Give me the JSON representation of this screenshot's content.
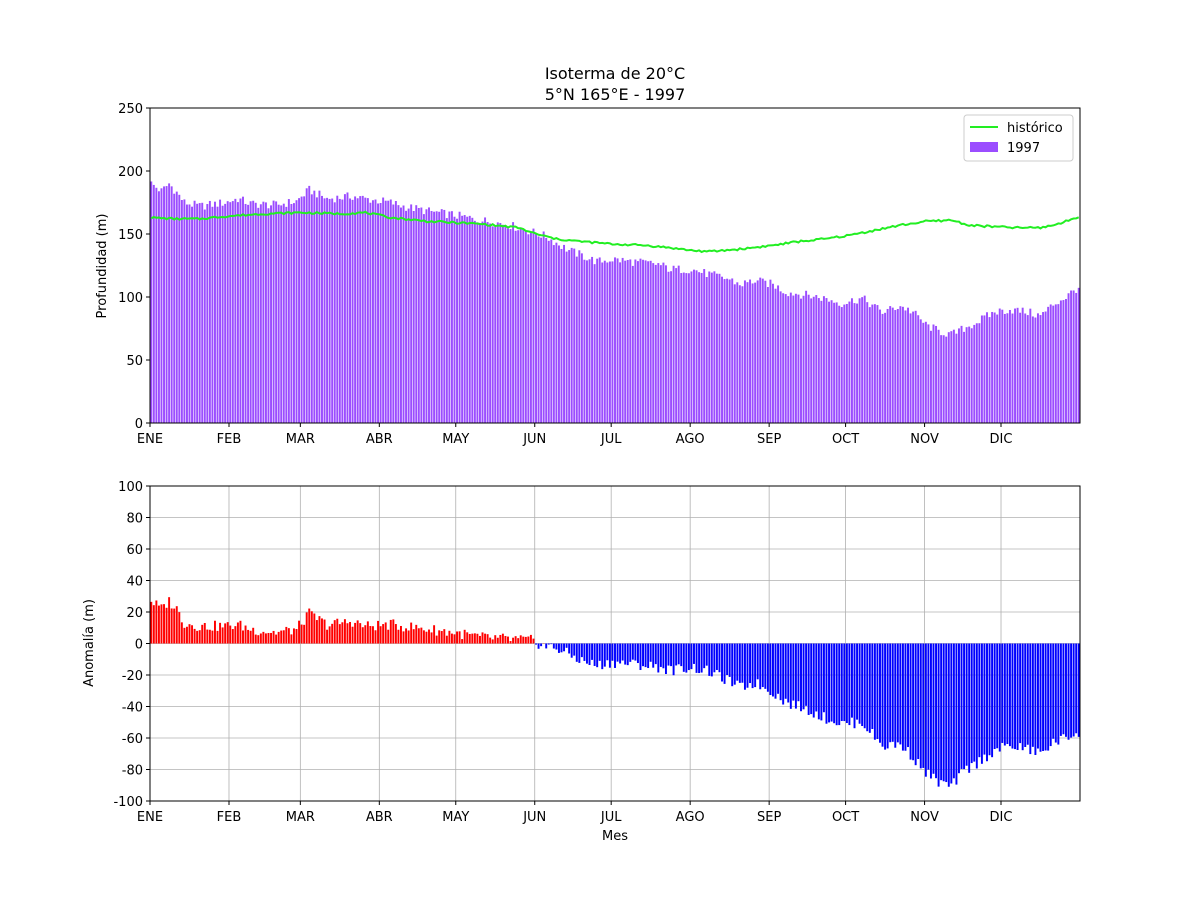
{
  "figure": {
    "title_line1": "Isoterma de 20°C",
    "title_line2": "5°N 165°E - 1997"
  },
  "chart_data": [
    {
      "type": "bar",
      "panel": "top",
      "ylabel": "Profundidad (m)",
      "xlabel": "",
      "ylim": [
        0,
        250
      ],
      "yticks": [
        0,
        50,
        100,
        150,
        200,
        250
      ],
      "xlim": [
        1,
        365
      ],
      "xtick_labels": [
        "ENE",
        "FEB",
        "MAR",
        "ABR",
        "MAY",
        "JUN",
        "JUL",
        "AGO",
        "SEP",
        "OCT",
        "NOV",
        "DIC"
      ],
      "xtick_days": [
        1,
        32,
        60,
        91,
        121,
        152,
        182,
        213,
        244,
        274,
        305,
        335
      ],
      "grid": false,
      "legend": {
        "placement": "top-right",
        "entries": [
          "histórico",
          "1997"
        ]
      },
      "colors": {
        "bars": "#9b4dff",
        "line": "#22ee22"
      },
      "series": [
        {
          "name": "1997",
          "kind": "bar",
          "anchors": [
            [
              1,
              190
            ],
            [
              5,
              184
            ],
            [
              8,
              190
            ],
            [
              11,
              183
            ],
            [
              14,
              175
            ],
            [
              20,
              172
            ],
            [
              30,
              175
            ],
            [
              35,
              178
            ],
            [
              40,
              174
            ],
            [
              50,
              173
            ],
            [
              58,
              176
            ],
            [
              63,
              185
            ],
            [
              70,
              178
            ],
            [
              80,
              180
            ],
            [
              85,
              178
            ],
            [
              95,
              175
            ],
            [
              100,
              172
            ],
            [
              110,
              168
            ],
            [
              120,
              165
            ],
            [
              130,
              161
            ],
            [
              140,
              158
            ],
            [
              150,
              152
            ],
            [
              156,
              148
            ],
            [
              160,
              143
            ],
            [
              165,
              137
            ],
            [
              170,
              133
            ],
            [
              176,
              128
            ],
            [
              182,
              130
            ],
            [
              190,
              128
            ],
            [
              200,
              126
            ],
            [
              205,
              122
            ],
            [
              213,
              122
            ],
            [
              220,
              118
            ],
            [
              228,
              114
            ],
            [
              232,
              110
            ],
            [
              238,
              113
            ],
            [
              245,
              110
            ],
            [
              250,
              104
            ],
            [
              260,
              101
            ],
            [
              265,
              99
            ],
            [
              272,
              95
            ],
            [
              280,
              99
            ],
            [
              288,
              88
            ],
            [
              295,
              93
            ],
            [
              300,
              88
            ],
            [
              305,
              78
            ],
            [
              310,
              73
            ],
            [
              315,
              70
            ],
            [
              320,
              75
            ],
            [
              325,
              80
            ],
            [
              332,
              88
            ],
            [
              338,
              90
            ],
            [
              345,
              88
            ],
            [
              350,
              85
            ],
            [
              355,
              94
            ],
            [
              360,
              100
            ],
            [
              365,
              108
            ]
          ]
        },
        {
          "name": "histórico",
          "kind": "line",
          "anchors": [
            [
              1,
              163
            ],
            [
              10,
              162
            ],
            [
              20,
              162
            ],
            [
              30,
              164
            ],
            [
              45,
              166
            ],
            [
              60,
              167
            ],
            [
              75,
              166
            ],
            [
              85,
              167
            ],
            [
              95,
              163
            ],
            [
              110,
              160
            ],
            [
              130,
              158
            ],
            [
              145,
              155
            ],
            [
              152,
              150
            ],
            [
              160,
              146
            ],
            [
              170,
              144
            ],
            [
              182,
              142
            ],
            [
              195,
              141
            ],
            [
              205,
              139
            ],
            [
              213,
              137
            ],
            [
              220,
              136
            ],
            [
              232,
              138
            ],
            [
              245,
              141
            ],
            [
              255,
              144
            ],
            [
              265,
              146
            ],
            [
              275,
              149
            ],
            [
              285,
              153
            ],
            [
              295,
              157
            ],
            [
              305,
              160
            ],
            [
              315,
              161
            ],
            [
              322,
              157
            ],
            [
              330,
              156
            ],
            [
              340,
              155
            ],
            [
              350,
              155
            ],
            [
              355,
              157
            ],
            [
              360,
              160
            ],
            [
              365,
              164
            ]
          ]
        }
      ]
    },
    {
      "type": "bar",
      "panel": "bottom",
      "ylabel": "Anomalía (m)",
      "xlabel": "Mes",
      "ylim": [
        -100,
        100
      ],
      "yticks": [
        -100,
        -80,
        -60,
        -40,
        -20,
        0,
        20,
        40,
        60,
        80,
        100
      ],
      "xlim": [
        1,
        365
      ],
      "xtick_labels": [
        "ENE",
        "FEB",
        "MAR",
        "ABR",
        "MAY",
        "JUN",
        "JUL",
        "AGO",
        "SEP",
        "OCT",
        "NOV",
        "DIC"
      ],
      "xtick_days": [
        1,
        32,
        60,
        91,
        121,
        152,
        182,
        213,
        244,
        274,
        305,
        335
      ],
      "grid": true,
      "colors": {
        "positive": "#ff0000",
        "negative": "#0000ff",
        "grid": "#b0b0b0"
      },
      "series": [
        {
          "name": "",
          "kind": "bar",
          "anchors": [
            [
              1,
              27
            ],
            [
              5,
              22
            ],
            [
              8,
              27
            ],
            [
              11,
              22
            ],
            [
              14,
              13
            ],
            [
              20,
              11
            ],
            [
              30,
              11
            ],
            [
              35,
              12
            ],
            [
              40,
              9
            ],
            [
              50,
              7
            ],
            [
              58,
              9
            ],
            [
              63,
              19
            ],
            [
              70,
              12
            ],
            [
              80,
              14
            ],
            [
              85,
              11
            ],
            [
              95,
              12
            ],
            [
              100,
              11
            ],
            [
              110,
              9
            ],
            [
              120,
              7
            ],
            [
              130,
              4
            ],
            [
              140,
              3
            ],
            [
              150,
              2
            ],
            [
              156,
              -2
            ],
            [
              160,
              -3
            ],
            [
              165,
              -7
            ],
            [
              170,
              -11
            ],
            [
              176,
              -14
            ],
            [
              182,
              -12
            ],
            [
              190,
              -13
            ],
            [
              200,
              -15
            ],
            [
              205,
              -17
            ],
            [
              213,
              -15
            ],
            [
              220,
              -18
            ],
            [
              228,
              -24
            ],
            [
              232,
              -28
            ],
            [
              238,
              -25
            ],
            [
              245,
              -31
            ],
            [
              250,
              -37
            ],
            [
              260,
              -43
            ],
            [
              265,
              -47
            ],
            [
              272,
              -51
            ],
            [
              280,
              -50
            ],
            [
              288,
              -65
            ],
            [
              295,
              -64
            ],
            [
              300,
              -72
            ],
            [
              305,
              -82
            ],
            [
              310,
              -88
            ],
            [
              315,
              -91
            ],
            [
              320,
              -81
            ],
            [
              325,
              -76
            ],
            [
              332,
              -68
            ],
            [
              338,
              -65
            ],
            [
              345,
              -67
            ],
            [
              350,
              -70
            ],
            [
              355,
              -63
            ],
            [
              360,
              -60
            ],
            [
              365,
              -56
            ]
          ]
        }
      ]
    }
  ]
}
